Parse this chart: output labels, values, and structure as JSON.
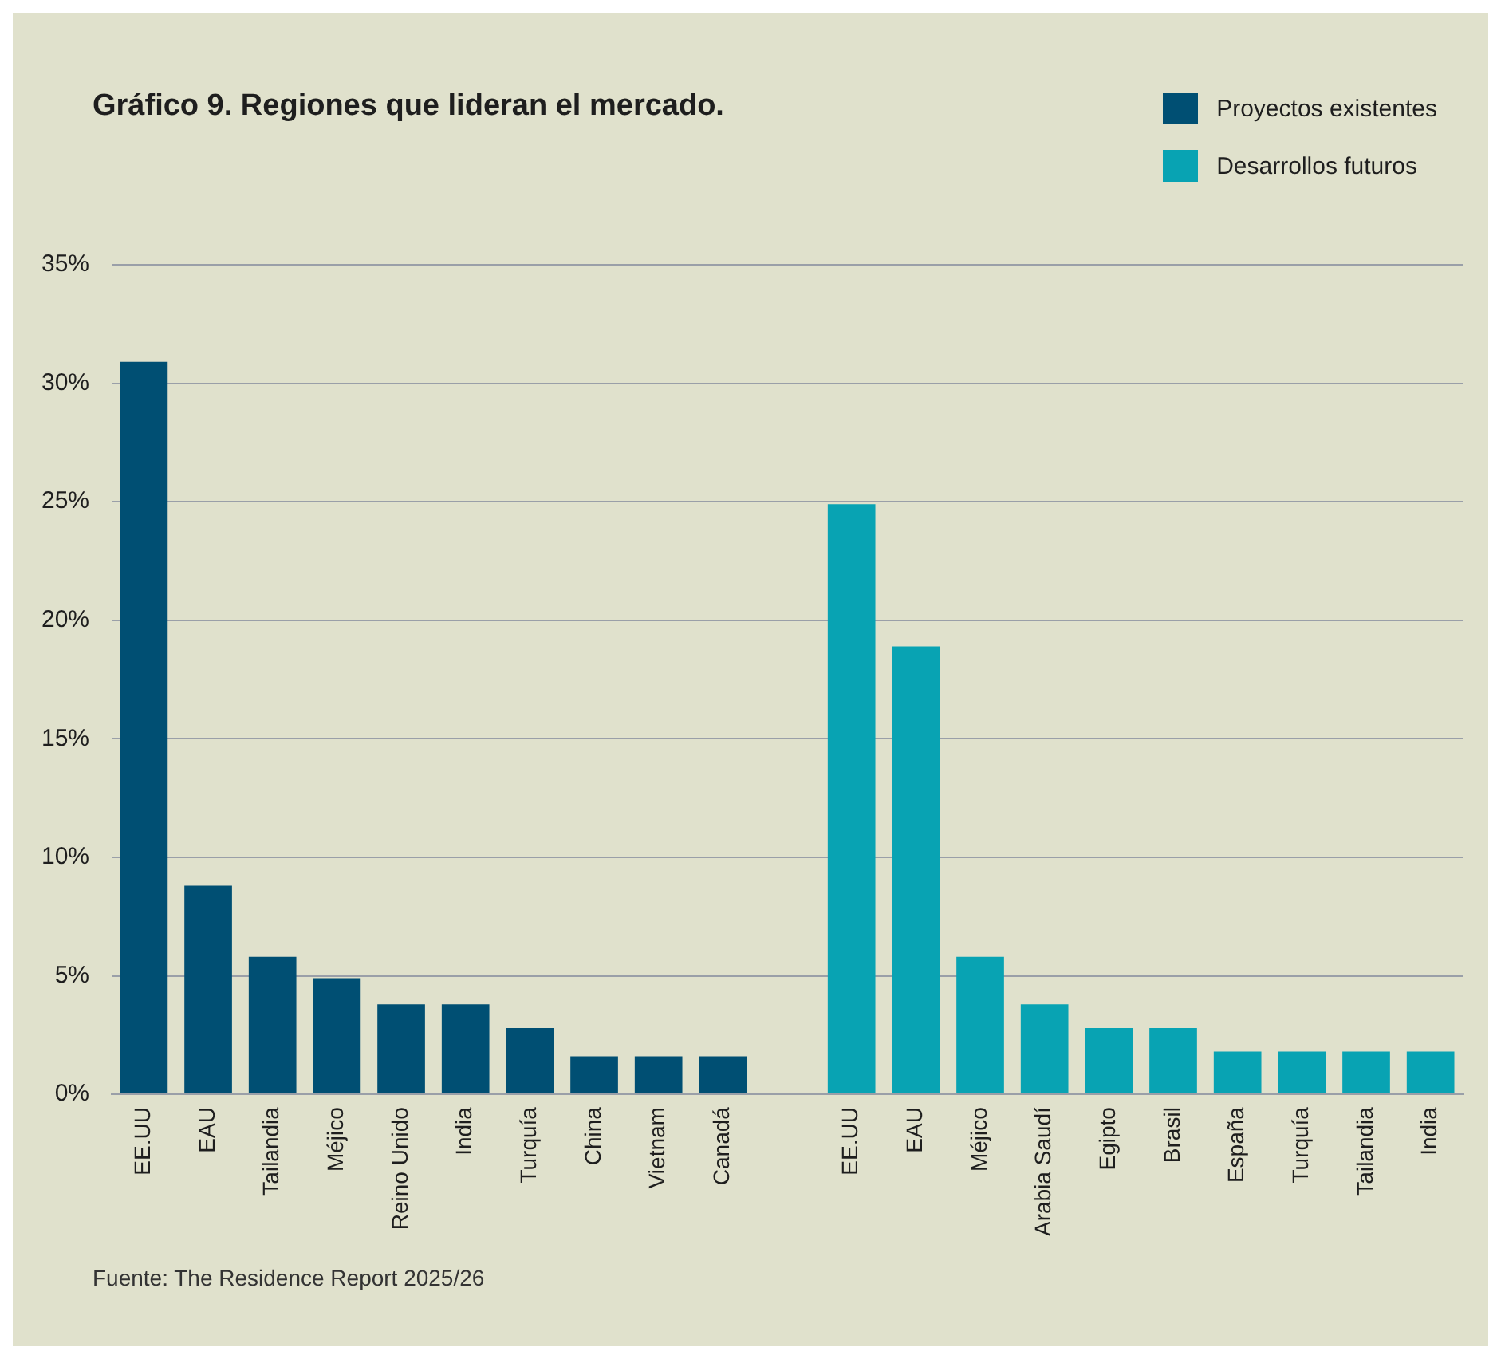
{
  "chart_data": {
    "type": "bar",
    "title": "Gráfico 9. Regiones que lideran el mercado.",
    "categories": [
      "EE.UU",
      "EAU",
      "Tailandia",
      "Méjico",
      "Reino Unido",
      "India",
      "Turquía",
      "China",
      "Vietnam",
      "Canadá",
      null,
      "EE.UU",
      "EAU",
      "Méjico",
      "Arabia Saudí",
      "Egipto",
      "Brasil",
      "España",
      "Turquía",
      "Tailandia",
      "India"
    ],
    "series": [
      {
        "name": "Proyectos existentes",
        "color": "#004f73",
        "values": [
          30.9,
          8.8,
          5.8,
          4.9,
          3.8,
          3.8,
          2.8,
          1.6,
          1.6,
          1.6,
          null,
          null,
          null,
          null,
          null,
          null,
          null,
          null,
          null,
          null,
          null
        ]
      },
      {
        "name": "Desarrollos futuros",
        "color": "#08a3b3",
        "values": [
          null,
          null,
          null,
          null,
          null,
          null,
          null,
          null,
          null,
          null,
          null,
          24.9,
          18.9,
          5.8,
          3.8,
          2.8,
          2.8,
          1.8,
          1.8,
          1.8,
          1.8
        ]
      }
    ],
    "ylim": [
      0,
      35
    ],
    "yticks": [
      {
        "value": 0,
        "label": "0%"
      },
      {
        "value": 5,
        "label": "5%"
      },
      {
        "value": 10,
        "label": "10%"
      },
      {
        "value": 15,
        "label": "15%"
      },
      {
        "value": 20,
        "label": "20%"
      },
      {
        "value": 25,
        "label": "25%"
      },
      {
        "value": 30,
        "label": "30%"
      },
      {
        "value": 35,
        "label": "35%"
      }
    ],
    "grid": "y",
    "legend": "top right",
    "annotations": [
      "Fuente: The Residence Report 2025/26"
    ]
  }
}
